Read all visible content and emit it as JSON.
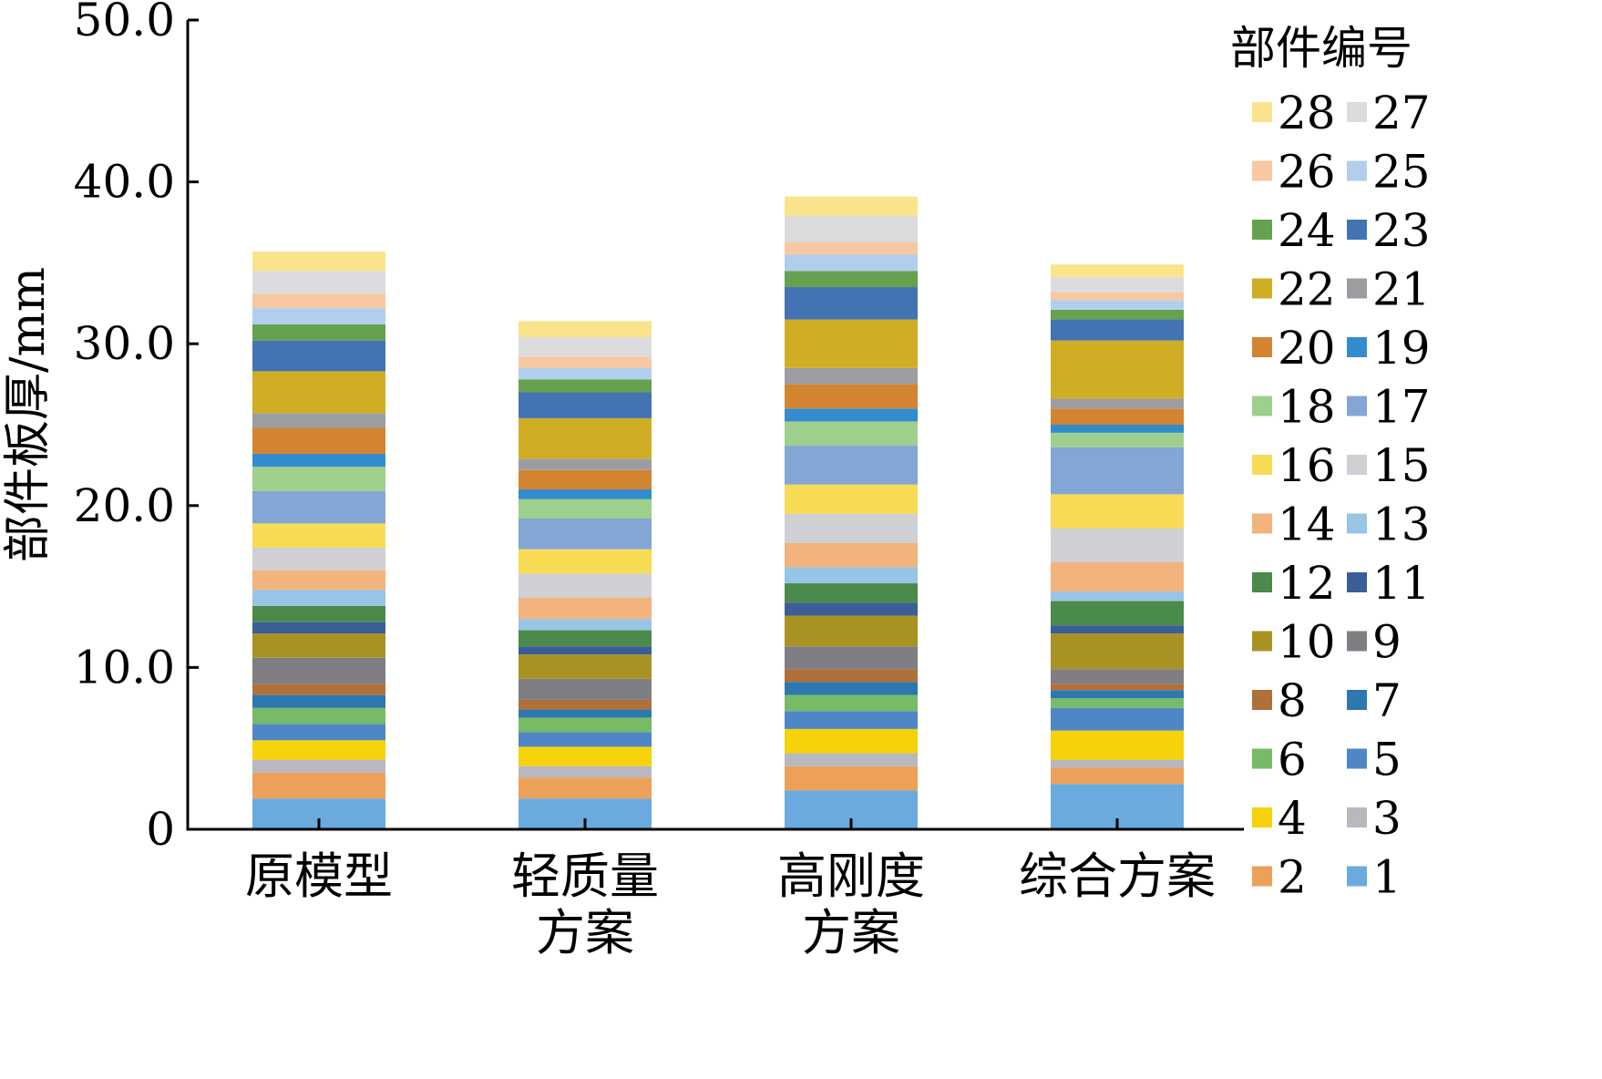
{
  "chart_data": {
    "type": "bar",
    "stacked": true,
    "ylabel": "部件板厚/mm",
    "xlabel": "",
    "ylim": [
      0,
      50
    ],
    "yticks": [
      "0",
      "10.0",
      "20.0",
      "30.0",
      "40.0",
      "50.0"
    ],
    "grid": false,
    "legend_title": "部件编号",
    "legend_position": "right",
    "categories": [
      [
        "原模型"
      ],
      [
        "轻质量",
        "方案"
      ],
      [
        "高刚度",
        "方案"
      ],
      [
        "综合方案"
      ]
    ],
    "series": [
      {
        "name": "1",
        "color": "#6aaade",
        "values": [
          1.9,
          1.9,
          2.4,
          2.8
        ]
      },
      {
        "name": "2",
        "color": "#eda05a",
        "values": [
          1.6,
          1.3,
          1.5,
          1.0
        ]
      },
      {
        "name": "3",
        "color": "#b8b8be",
        "values": [
          0.8,
          0.7,
          0.8,
          0.5
        ]
      },
      {
        "name": "4",
        "color": "#f5d20a",
        "values": [
          1.2,
          1.2,
          1.5,
          1.8
        ]
      },
      {
        "name": "5",
        "color": "#4f86c6",
        "values": [
          1.0,
          0.9,
          1.1,
          1.4
        ]
      },
      {
        "name": "6",
        "color": "#77bb66",
        "values": [
          1.0,
          0.9,
          1.0,
          0.6
        ]
      },
      {
        "name": "7",
        "color": "#2e78b0",
        "values": [
          0.8,
          0.5,
          0.8,
          0.5
        ]
      },
      {
        "name": "8",
        "color": "#b0703a",
        "values": [
          0.7,
          0.6,
          0.8,
          0.4
        ]
      },
      {
        "name": "9",
        "color": "#7f7f83",
        "values": [
          1.6,
          1.3,
          1.4,
          0.9
        ]
      },
      {
        "name": "10",
        "color": "#a89224",
        "values": [
          1.5,
          1.5,
          1.9,
          2.2
        ]
      },
      {
        "name": "11",
        "color": "#3b5e96",
        "values": [
          0.7,
          0.5,
          0.8,
          0.5
        ]
      },
      {
        "name": "12",
        "color": "#4a8a4a",
        "values": [
          1.0,
          1.0,
          1.2,
          1.5
        ]
      },
      {
        "name": "13",
        "color": "#98c4e6",
        "values": [
          1.0,
          0.7,
          1.0,
          0.6
        ]
      },
      {
        "name": "14",
        "color": "#f2b37d",
        "values": [
          1.2,
          1.3,
          1.5,
          1.8
        ]
      },
      {
        "name": "15",
        "color": "#cfcfd4",
        "values": [
          1.4,
          1.5,
          1.8,
          2.1
        ]
      },
      {
        "name": "16",
        "color": "#f8db55",
        "values": [
          1.5,
          1.5,
          1.8,
          2.1
        ]
      },
      {
        "name": "17",
        "color": "#84a6d4",
        "values": [
          2.0,
          1.9,
          2.4,
          2.9
        ]
      },
      {
        "name": "18",
        "color": "#9ecf8d",
        "values": [
          1.5,
          1.2,
          1.5,
          0.9
        ]
      },
      {
        "name": "19",
        "color": "#338ccd",
        "values": [
          0.8,
          0.6,
          0.8,
          0.5
        ]
      },
      {
        "name": "20",
        "color": "#d38430",
        "values": [
          1.6,
          1.2,
          1.5,
          1.0
        ]
      },
      {
        "name": "21",
        "color": "#9d9da1",
        "values": [
          0.9,
          0.7,
          1.0,
          0.6
        ]
      },
      {
        "name": "22",
        "color": "#cfae25",
        "values": [
          2.6,
          2.5,
          3.0,
          3.6
        ]
      },
      {
        "name": "23",
        "color": "#4473b3",
        "values": [
          1.9,
          1.6,
          2.0,
          1.3
        ]
      },
      {
        "name": "24",
        "color": "#64a250",
        "values": [
          1.0,
          0.8,
          1.0,
          0.6
        ]
      },
      {
        "name": "25",
        "color": "#b1cfec",
        "values": [
          1.0,
          0.7,
          1.0,
          0.6
        ]
      },
      {
        "name": "26",
        "color": "#f6c9a2",
        "values": [
          0.9,
          0.7,
          0.8,
          0.5
        ]
      },
      {
        "name": "27",
        "color": "#dcdcdf",
        "values": [
          1.4,
          1.2,
          1.6,
          0.9
        ]
      },
      {
        "name": "28",
        "color": "#f9e48c",
        "values": [
          1.2,
          1.0,
          1.2,
          0.8
        ]
      }
    ]
  }
}
